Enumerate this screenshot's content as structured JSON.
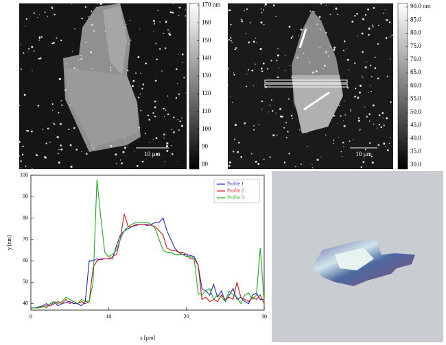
{
  "panels": [
    {
      "scale_bar": "10 µm"
    },
    {
      "scale_bar": "10 µm"
    }
  ],
  "chart_data": [
    {
      "type": "colorbar",
      "ylim": [
        77.5,
        171
      ],
      "yticks": [
        {
          "value": 170,
          "label": "170 nm"
        },
        160,
        150,
        140,
        130,
        120,
        110,
        100,
        90,
        80
      ]
    },
    {
      "type": "colorbar",
      "ylim": [
        28.4,
        91.3
      ],
      "yticks": [
        {
          "value": 90,
          "label": "90.0 nm"
        },
        {
          "value": 85,
          "label": "85.0"
        },
        {
          "value": 80,
          "label": "80.0"
        },
        {
          "value": 75,
          "label": "75.0"
        },
        {
          "value": 70,
          "label": "70.0"
        },
        {
          "value": 65,
          "label": "65.0"
        },
        {
          "value": 60,
          "label": "60.0"
        },
        {
          "value": 55,
          "label": "55.0"
        },
        {
          "value": 50,
          "label": "50.0"
        },
        {
          "value": 45,
          "label": "45.0"
        },
        {
          "value": 40,
          "label": "40.0"
        },
        {
          "value": 35,
          "label": "35.0"
        },
        {
          "value": 30,
          "label": "30.0"
        }
      ]
    },
    {
      "type": "line",
      "x_label": "x [µm]",
      "y_label": "y [nm]",
      "legend": "upper right",
      "xlim": [
        0,
        30
      ],
      "xticks": [
        0,
        10,
        20,
        30
      ],
      "ylim": [
        37,
        100
      ],
      "yticks": [
        40,
        50,
        60,
        70,
        80,
        90,
        100
      ],
      "x": [
        0,
        0.5,
        1,
        1.5,
        2,
        2.5,
        3,
        3.5,
        4,
        4.5,
        5,
        5.5,
        6,
        6.5,
        7,
        7.5,
        8,
        8.5,
        9,
        9.5,
        10,
        10.5,
        11,
        11.5,
        12,
        12.5,
        13,
        13.5,
        14,
        14.5,
        15,
        15.5,
        16,
        16.5,
        17,
        17.5,
        18,
        18.5,
        19,
        19.5,
        20,
        20.5,
        21,
        21.5,
        22,
        22.5,
        23,
        23.5,
        24,
        24.5,
        25,
        25.5,
        26,
        26.5,
        27,
        27.5,
        28,
        28.5,
        29,
        29.5,
        30
      ],
      "series": [
        {
          "name": "Profile 1",
          "color": "#1f1fd6",
          "values": [
            38,
            38,
            38.5,
            39,
            40,
            39,
            41,
            39,
            40,
            40.5,
            41,
            40,
            40,
            39,
            41,
            60,
            60,
            61,
            60.5,
            61,
            61,
            61,
            67,
            72,
            74,
            75,
            76,
            76.5,
            77,
            77,
            76.5,
            77,
            78,
            78,
            80,
            74,
            70,
            66,
            64,
            63,
            63,
            62.5,
            62,
            58,
            47,
            46,
            44,
            49,
            43,
            46,
            41,
            44,
            47,
            42,
            43,
            41,
            40,
            44,
            45,
            42,
            42
          ]
        },
        {
          "name": "Profile 2",
          "color": "#e01010",
          "values": [
            38,
            38,
            38,
            38.5,
            39,
            39,
            40,
            41,
            40,
            42,
            40,
            41,
            40,
            41,
            40,
            41,
            57,
            60,
            61,
            61,
            61,
            62,
            63,
            70,
            82,
            76,
            76,
            77,
            77,
            77,
            77,
            76.5,
            76,
            74,
            72,
            66,
            65,
            65,
            64,
            64,
            63,
            61,
            61,
            58,
            42,
            43,
            41,
            42,
            41,
            44,
            42,
            43,
            42,
            50,
            43,
            42,
            41,
            43,
            42,
            44,
            40
          ]
        },
        {
          "name": "Profile 3",
          "color": "#18b018",
          "values": [
            38,
            38,
            38,
            39,
            38,
            40,
            41,
            40,
            41,
            43,
            42,
            41,
            40,
            42,
            41,
            41,
            50,
            98,
            80,
            64,
            62,
            63,
            65,
            70,
            74,
            76,
            77,
            78,
            78,
            78,
            78,
            77,
            75,
            70,
            65,
            64,
            64,
            63,
            63,
            63,
            62,
            62,
            61,
            45,
            44,
            46,
            47,
            42,
            44,
            43,
            41,
            46,
            44,
            43,
            40,
            44,
            45,
            42,
            44,
            66,
            41
          ]
        }
      ]
    }
  ]
}
